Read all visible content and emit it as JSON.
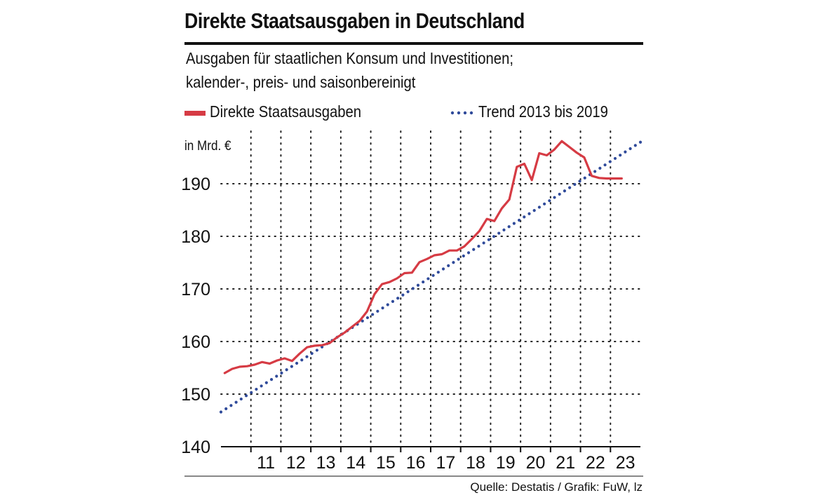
{
  "chart_data": {
    "type": "line",
    "title": "Direkte Staatsausgaben in Deutschland",
    "subtitle_line1": "Ausgaben für staatlichen Konsum und Investitionen;",
    "subtitle_line2": "kalender-, preis- und saisonbereinigt",
    "unit_label": "in Mrd. €",
    "source": "Quelle: Destatis / Grafik: FuW, lz",
    "ylim": [
      140,
      200
    ],
    "yticks": [
      140,
      150,
      160,
      170,
      180,
      190
    ],
    "xlim": [
      2010.0,
      2024.0
    ],
    "xtick_labels": [
      "11",
      "12",
      "13",
      "14",
      "15",
      "16",
      "17",
      "18",
      "19",
      "20",
      "21",
      "22",
      "23"
    ],
    "xtick_positions": [
      2011.5,
      2012.5,
      2013.5,
      2014.5,
      2015.5,
      2016.5,
      2017.5,
      2018.5,
      2019.5,
      2020.5,
      2021.5,
      2022.5,
      2023.5
    ],
    "gridlines_x": [
      2011,
      2012,
      2013,
      2014,
      2015,
      2016,
      2017,
      2018,
      2019,
      2020,
      2021,
      2022,
      2023
    ],
    "legend": {
      "actual": "Direkte Staatsausgaben",
      "trend": "Trend 2013 bis 2019"
    },
    "colors": {
      "actual": "#d63b44",
      "trend": "#2f4a9a",
      "grid": "#222222",
      "text": "#111111"
    },
    "series": [
      {
        "name": "Direkte Staatsausgaben",
        "style": "solid",
        "x": [
          2010.125,
          2010.375,
          2010.625,
          2010.875,
          2011.125,
          2011.375,
          2011.625,
          2011.875,
          2012.125,
          2012.375,
          2012.625,
          2012.875,
          2013.125,
          2013.375,
          2013.625,
          2013.875,
          2014.125,
          2014.375,
          2014.625,
          2014.875,
          2015.125,
          2015.375,
          2015.625,
          2015.875,
          2016.125,
          2016.375,
          2016.625,
          2016.875,
          2017.125,
          2017.375,
          2017.625,
          2017.875,
          2018.125,
          2018.375,
          2018.625,
          2018.875,
          2019.125,
          2019.375,
          2019.625,
          2019.875,
          2020.125,
          2020.375,
          2020.625,
          2020.875,
          2021.125,
          2021.375,
          2021.625,
          2021.875,
          2022.125,
          2022.375,
          2022.625,
          2022.875,
          2023.125,
          2023.375,
          2023.625,
          2023.875
        ],
        "values": [
          154.0,
          154.8,
          155.2,
          155.3,
          155.6,
          156.1,
          155.8,
          156.4,
          156.8,
          156.3,
          157.7,
          158.9,
          159.2,
          159.3,
          159.7,
          160.8,
          161.7,
          162.8,
          163.9,
          165.7,
          169.0,
          170.9,
          171.3,
          172.0,
          173.0,
          173.1,
          175.1,
          175.7,
          176.4,
          176.6,
          177.3,
          177.3,
          178.1,
          179.5,
          181.0,
          183.3,
          182.9,
          185.3,
          187.0,
          193.2,
          193.8,
          190.7,
          195.8,
          195.4,
          196.5,
          198.1,
          197.0,
          195.9,
          195.0,
          191.5,
          191.1,
          191.0,
          191.0,
          191.0,
          191.0,
          191.0
        ]
      },
      {
        "name": "Trend 2013 bis 2019",
        "style": "dotted",
        "x": [
          2010.0,
          2024.0
        ],
        "values": [
          146.6,
          197.9
        ]
      }
    ]
  }
}
